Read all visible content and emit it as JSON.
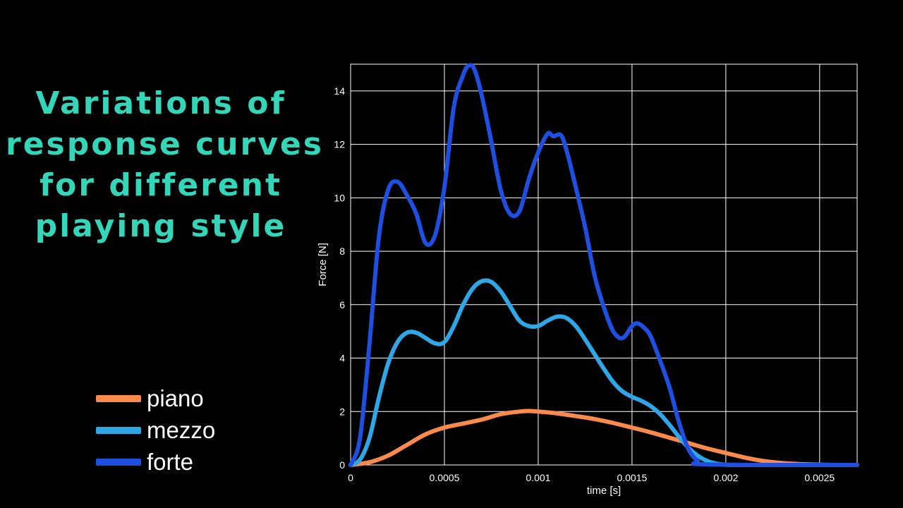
{
  "title_lines": [
    "Variations of",
    "response curves",
    "for different",
    "playing style"
  ],
  "chart_data": {
    "type": "line",
    "xlabel": "time [s]",
    "ylabel": "Force [N]",
    "xlim": [
      0,
      0.0027
    ],
    "ylim": [
      0,
      15
    ],
    "xticks": [
      0,
      0.0005,
      0.001,
      0.0015,
      0.002,
      0.0025
    ],
    "xtick_labels": [
      "0",
      "0.0005",
      "0.001",
      "0.0015",
      "0.002",
      "0.0025"
    ],
    "yticks": [
      0,
      2,
      4,
      6,
      8,
      10,
      12,
      14
    ],
    "ytick_labels": [
      "0",
      "2",
      "4",
      "6",
      "8",
      "10",
      "12",
      "14"
    ],
    "grid": true,
    "legend_position": "bottom-left",
    "series": [
      {
        "name": "piano",
        "color": "#fb8a4c",
        "x": [
          0,
          0.0001,
          0.0002,
          0.0003,
          0.0004,
          0.0005,
          0.0006,
          0.0007,
          0.0008,
          0.0009,
          0.00095,
          0.001,
          0.0011,
          0.0012,
          0.0013,
          0.0014,
          0.0015,
          0.0016,
          0.0017,
          0.0018,
          0.0019,
          0.002,
          0.0021,
          0.0022,
          0.0023,
          0.0024,
          0.0025,
          0.0026,
          0.0027
        ],
        "y": [
          0,
          0.1,
          0.35,
          0.75,
          1.15,
          1.4,
          1.55,
          1.7,
          1.9,
          2.0,
          2.02,
          2.0,
          1.93,
          1.83,
          1.72,
          1.57,
          1.4,
          1.22,
          1.02,
          0.82,
          0.62,
          0.45,
          0.28,
          0.15,
          0.07,
          0.03,
          0.01,
          0,
          0
        ]
      },
      {
        "name": "mezzo",
        "color": "#2fa6e6",
        "x": [
          0,
          5e-05,
          0.0001,
          0.00015,
          0.0002,
          0.00025,
          0.0003,
          0.00035,
          0.0004,
          0.00045,
          0.0005,
          0.00055,
          0.0006,
          0.00065,
          0.0007,
          0.00075,
          0.0008,
          0.00085,
          0.0009,
          0.00095,
          0.001,
          0.00105,
          0.0011,
          0.00115,
          0.0012,
          0.00125,
          0.0013,
          0.00135,
          0.0014,
          0.00145,
          0.0015,
          0.00155,
          0.0016,
          0.00165,
          0.0017,
          0.00175,
          0.0018,
          0.00185,
          0.0019,
          0.00195,
          0.002,
          0.0021,
          0.0027
        ],
        "y": [
          0,
          0.2,
          1.0,
          2.5,
          3.8,
          4.6,
          4.95,
          4.95,
          4.75,
          4.55,
          4.6,
          5.2,
          6.0,
          6.6,
          6.88,
          6.85,
          6.5,
          5.95,
          5.4,
          5.2,
          5.2,
          5.4,
          5.55,
          5.5,
          5.2,
          4.7,
          4.15,
          3.6,
          3.1,
          2.75,
          2.55,
          2.4,
          2.2,
          1.9,
          1.5,
          1.05,
          0.65,
          0.35,
          0.15,
          0.05,
          0.01,
          0,
          0
        ]
      },
      {
        "name": "forte",
        "color": "#1e4fe0",
        "x": [
          0,
          5e-05,
          0.0001,
          0.00015,
          0.0002,
          0.00025,
          0.0003,
          0.00035,
          0.0004,
          0.00045,
          0.0005,
          0.00055,
          0.0006,
          0.00063,
          0.00066,
          0.0007,
          0.00075,
          0.0008,
          0.00085,
          0.0009,
          0.00095,
          0.001,
          0.00105,
          0.00108,
          0.00112,
          0.00115,
          0.0012,
          0.00125,
          0.0013,
          0.00135,
          0.0014,
          0.00145,
          0.0015,
          0.00153,
          0.00157,
          0.0016,
          0.00165,
          0.0017,
          0.00175,
          0.0018,
          0.00185,
          0.0019,
          0.0027
        ],
        "y": [
          0,
          1.0,
          4.5,
          8.5,
          10.3,
          10.6,
          10.1,
          9.4,
          8.3,
          8.6,
          10.4,
          13.4,
          14.6,
          14.95,
          14.8,
          13.8,
          12.1,
          10.3,
          9.4,
          9.5,
          10.7,
          11.7,
          12.4,
          12.3,
          12.35,
          11.8,
          10.4,
          8.9,
          7.1,
          5.9,
          5.0,
          4.75,
          5.2,
          5.3,
          5.1,
          4.8,
          3.9,
          2.9,
          1.6,
          0.6,
          0.15,
          0.02,
          0
        ]
      }
    ]
  }
}
